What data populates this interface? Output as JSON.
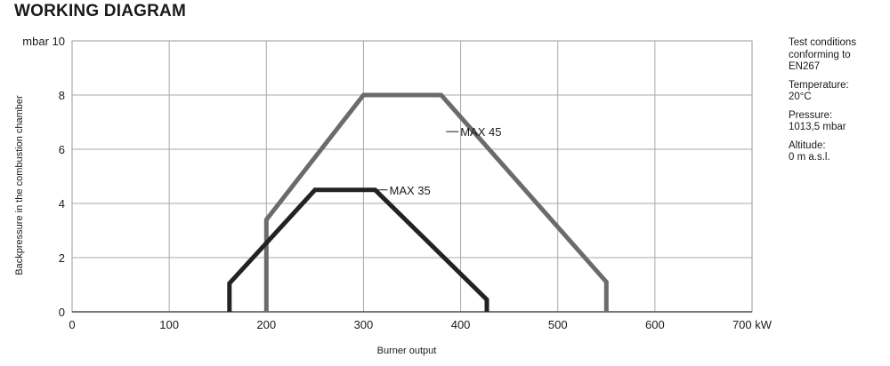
{
  "page": {
    "title": "WORKING DIAGRAM"
  },
  "notes": [
    "Test conditions\nconforming to\nEN267",
    "Temperature:\n20°C",
    "Pressure:\n1013,5 mbar",
    "Altitude:\n0 m a.s.l."
  ],
  "chart_data": {
    "type": "line",
    "title": "",
    "xlabel": "Burner output",
    "ylabel": "Backpressure in the combustion chamber",
    "xlim": [
      0,
      700
    ],
    "ylim": [
      0,
      10
    ],
    "x_ticks": [
      0,
      100,
      200,
      300,
      400,
      500,
      600,
      700
    ],
    "x_tick_labels": [
      "0",
      "100",
      "200",
      "300",
      "400",
      "500",
      "600",
      "700 kW"
    ],
    "y_ticks": [
      0,
      2,
      4,
      6,
      8,
      10
    ],
    "y_tick_labels": [
      "0",
      "2",
      "4",
      "6",
      "8",
      "mbar 10"
    ],
    "grid": true,
    "series": [
      {
        "name": "MAX 45",
        "color": "#6b6b6b",
        "x": [
          200,
          200,
          300,
          380,
          550,
          550
        ],
        "y": [
          0,
          3.4,
          8,
          8,
          1.1,
          0
        ],
        "label_at": [
          385,
          6.65
        ]
      },
      {
        "name": "MAX 35",
        "color": "#222222",
        "x": [
          162,
          162,
          250,
          312,
          427,
          427
        ],
        "y": [
          0,
          1.05,
          4.5,
          4.5,
          0.45,
          0
        ],
        "label_at": [
          312,
          4.5
        ]
      }
    ]
  }
}
